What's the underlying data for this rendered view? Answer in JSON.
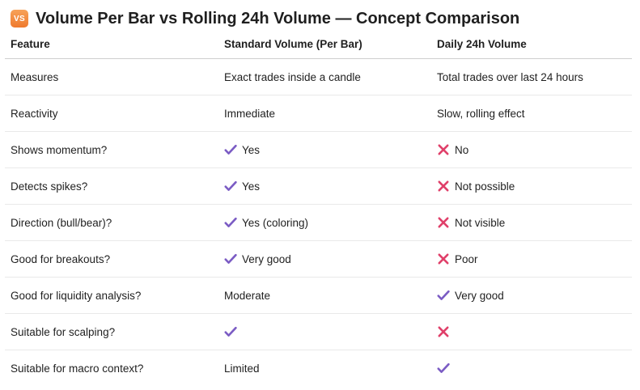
{
  "title": {
    "badge": "VS",
    "text": "Volume Per Bar vs Rolling 24h Volume — Concept Comparison"
  },
  "table": {
    "headers": [
      "Feature",
      "Standard Volume (Per Bar)",
      "Daily 24h Volume"
    ],
    "rows": [
      {
        "feature": "Measures",
        "standard": {
          "icon": "",
          "text": "Exact trades inside a candle"
        },
        "daily": {
          "icon": "",
          "text": "Total trades over last 24 hours"
        }
      },
      {
        "feature": "Reactivity",
        "standard": {
          "icon": "",
          "text": "Immediate"
        },
        "daily": {
          "icon": "",
          "text": "Slow, rolling effect"
        }
      },
      {
        "feature": "Shows momentum?",
        "standard": {
          "icon": "check",
          "text": "Yes"
        },
        "daily": {
          "icon": "cross",
          "text": "No"
        }
      },
      {
        "feature": "Detects spikes?",
        "standard": {
          "icon": "check",
          "text": "Yes"
        },
        "daily": {
          "icon": "cross",
          "text": "Not possible"
        }
      },
      {
        "feature": "Direction (bull/bear)?",
        "standard": {
          "icon": "check",
          "text": "Yes (coloring)"
        },
        "daily": {
          "icon": "cross",
          "text": "Not visible"
        }
      },
      {
        "feature": "Good for breakouts?",
        "standard": {
          "icon": "check",
          "text": "Very good"
        },
        "daily": {
          "icon": "cross",
          "text": "Poor"
        }
      },
      {
        "feature": "Good for liquidity analysis?",
        "standard": {
          "icon": "",
          "text": "Moderate"
        },
        "daily": {
          "icon": "check",
          "text": "Very good"
        }
      },
      {
        "feature": "Suitable for scalping?",
        "standard": {
          "icon": "check",
          "text": ""
        },
        "daily": {
          "icon": "cross",
          "text": ""
        }
      },
      {
        "feature": "Suitable for macro context?",
        "standard": {
          "icon": "",
          "text": "Limited"
        },
        "daily": {
          "icon": "check",
          "text": ""
        }
      }
    ]
  },
  "colors": {
    "check": "#7b5cc4",
    "cross": "#e0406a",
    "badge": "#ef7a2e"
  }
}
